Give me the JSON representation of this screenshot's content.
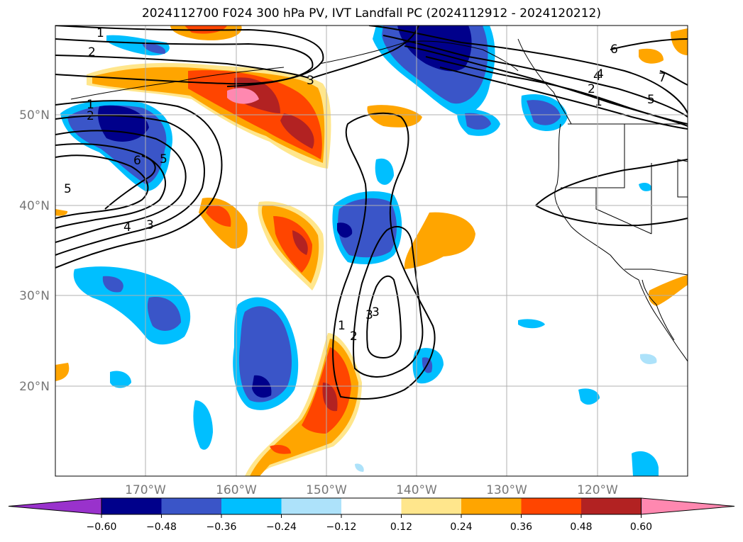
{
  "title": "2024112700 F024 300 hPa PV, IVT Landfall PC (2024112912 - 2024120212)",
  "lat_labels": [
    "50°N",
    "40°N",
    "30°N",
    "20°N"
  ],
  "lon_labels": [
    "170°W",
    "160°W",
    "150°W",
    "140°W",
    "130°W",
    "120°W"
  ],
  "colorbar": {
    "ticks": [
      "−0.60",
      "−0.48",
      "−0.36",
      "−0.24",
      "−0.12",
      "0.12",
      "0.24",
      "0.36",
      "0.48",
      "0.60"
    ],
    "colors": [
      "#9932cc",
      "#00008b",
      "#3a55c8",
      "#00bfff",
      "#ade2fa",
      "#ffffff",
      "#ffe68c",
      "#ffa500",
      "#ff4500",
      "#b22222",
      "#ff88b0"
    ]
  },
  "contour_labels": [
    "1",
    "2",
    "3",
    "4",
    "5",
    "6",
    "1",
    "2",
    "5",
    "4",
    "3",
    "3",
    "1",
    "2",
    "3",
    "4",
    "2",
    "1",
    "5",
    "6",
    "7"
  ]
}
